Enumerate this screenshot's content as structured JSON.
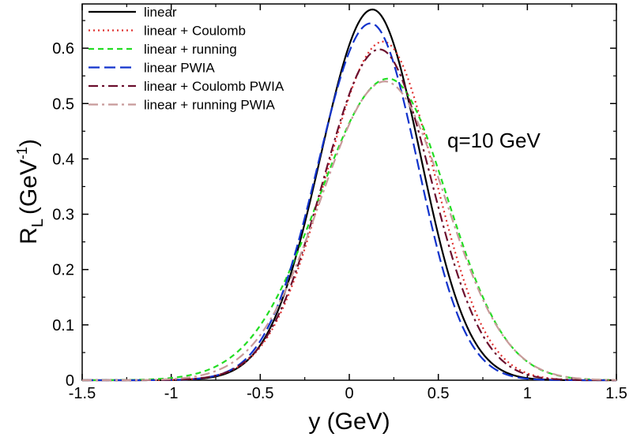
{
  "chart_data": {
    "type": "line",
    "title": "",
    "xlabel": "y (GeV)",
    "ylabel": "R_L (GeV^-1)",
    "ylabel_parts": {
      "main": "R",
      "sub": "L",
      "unit": "(GeV",
      "sup": "-1",
      "close": ")"
    },
    "xlim": [
      -1.5,
      1.5
    ],
    "ylim": [
      0,
      0.68
    ],
    "xticks": [
      -1.5,
      -1,
      -0.5,
      0,
      0.5,
      1,
      1.5
    ],
    "xtick_labels": [
      "-1.5",
      "-1",
      "-0.5",
      "0",
      "0.5",
      "1",
      "1.5"
    ],
    "yticks": [
      0,
      0.1,
      0.2,
      0.3,
      0.4,
      0.5,
      0.6
    ],
    "ytick_labels": [
      "0",
      "0.1",
      "0.2",
      "0.3",
      "0.4",
      "0.5",
      "0.6"
    ],
    "grid": false,
    "legend_position": "top-left",
    "annotation": "q=10 GeV",
    "series": [
      {
        "name": "linear",
        "color": "#000000",
        "dash": "solid",
        "peak_x": 0.13,
        "peak_y": 0.67,
        "sigma_left": 0.29,
        "sigma_right": 0.27
      },
      {
        "name": "linear + Coulomb",
        "color": "#e0302e",
        "dash": "dotted",
        "peak_x": 0.19,
        "peak_y": 0.612,
        "sigma_left": 0.32,
        "sigma_right": 0.29
      },
      {
        "name": "linear + running",
        "color": "#22dd22",
        "dash": "dashed",
        "peak_x": 0.22,
        "peak_y": 0.545,
        "sigma_left": 0.39,
        "sigma_right": 0.33
      },
      {
        "name": "linear PWIA",
        "color": "#1133cc",
        "dash": "longdash",
        "peak_x": 0.12,
        "peak_y": 0.645,
        "sigma_left": 0.295,
        "sigma_right": 0.265
      },
      {
        "name": "linear + Coulomb PWIA",
        "color": "#6b0f2e",
        "dash": "dashdot",
        "peak_x": 0.17,
        "peak_y": 0.598,
        "sigma_left": 0.315,
        "sigma_right": 0.29
      },
      {
        "name": "linear + running PWIA",
        "color": "#c89a9a",
        "dash": "dashdot",
        "peak_x": 0.2,
        "peak_y": 0.54,
        "sigma_left": 0.36,
        "sigma_right": 0.34
      }
    ]
  }
}
